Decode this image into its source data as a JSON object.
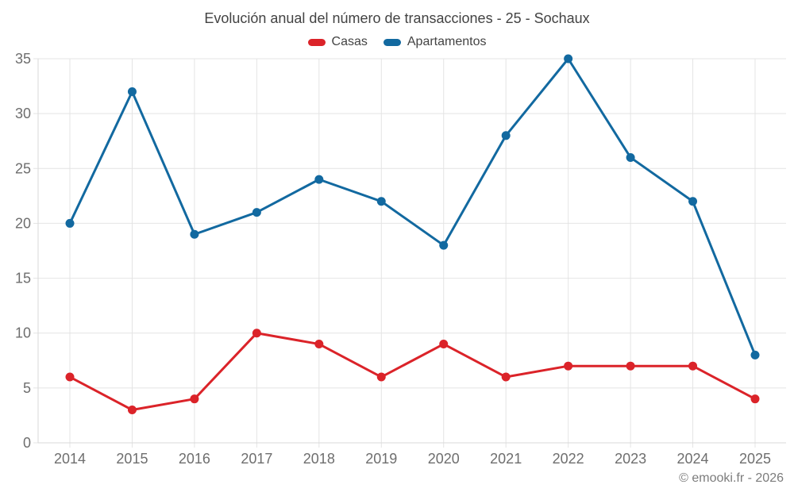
{
  "title": "Evolución anual del número de transacciones - 25 - Sochaux",
  "footer": "© emooki.fr - 2026",
  "chart_data": {
    "type": "line",
    "title": "Evolución anual del número de transacciones - 25 - Sochaux",
    "categories": [
      "2014",
      "2015",
      "2016",
      "2017",
      "2018",
      "2019",
      "2020",
      "2021",
      "2022",
      "2023",
      "2024",
      "2025"
    ],
    "series": [
      {
        "name": "Casas",
        "color": "#db2329",
        "values": [
          6,
          3,
          4,
          10,
          9,
          6,
          9,
          6,
          7,
          7,
          7,
          4
        ]
      },
      {
        "name": "Apartamentos",
        "color": "#1269a0",
        "values": [
          20,
          32,
          19,
          21,
          24,
          22,
          18,
          28,
          35,
          26,
          22,
          8
        ]
      }
    ],
    "xlabel": "",
    "ylabel": "",
    "ylim": [
      0,
      35
    ],
    "yticks": [
      0,
      5,
      10,
      15,
      20,
      25,
      30,
      35
    ],
    "grid": true,
    "legend_position": "top",
    "grid_color": "#e4e4e4",
    "axis_line_color": "#d9d9d9",
    "tick_label_color": "#6e6e6e",
    "title_color": "#434343",
    "footer_color": "#7c7c7c",
    "marker_radius": 5.5,
    "line_width": 3
  }
}
